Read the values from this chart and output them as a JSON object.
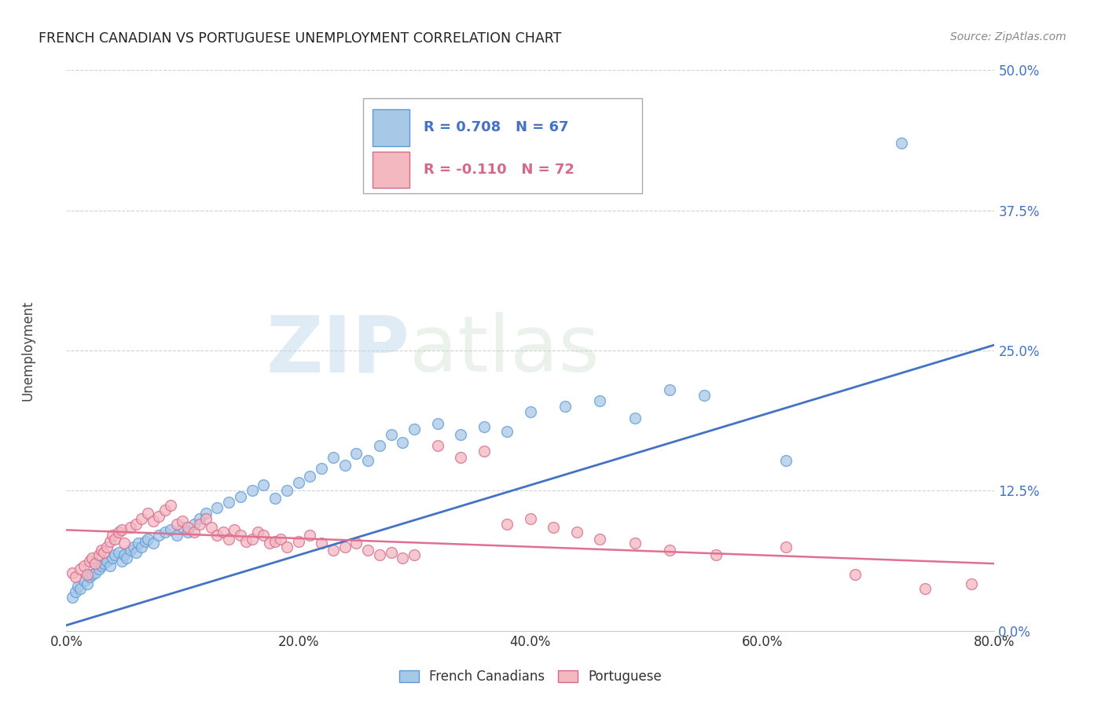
{
  "title": "FRENCH CANADIAN VS PORTUGUESE UNEMPLOYMENT CORRELATION CHART",
  "source": "Source: ZipAtlas.com",
  "ylabel": "Unemployment",
  "xlim": [
    0.0,
    0.8
  ],
  "ylim": [
    0.0,
    0.5
  ],
  "yticks": [
    0.0,
    0.125,
    0.25,
    0.375,
    0.5
  ],
  "xticks": [
    0.0,
    0.2,
    0.4,
    0.6,
    0.8
  ],
  "blue_color": "#a8c8e8",
  "blue_edge_color": "#5b9bd5",
  "pink_color": "#f4b8c1",
  "pink_edge_color": "#d4698a",
  "blue_line_color": "#4472c4",
  "pink_line_color": "#e07090",
  "legend_blue_R": "R = 0.708",
  "legend_blue_N": "N = 67",
  "legend_pink_R": "R = -0.110",
  "legend_pink_N": "N = 72",
  "blue_trend_x": [
    0.0,
    0.8
  ],
  "blue_trend_y": [
    0.005,
    0.255
  ],
  "pink_trend_x": [
    0.0,
    0.8
  ],
  "pink_trend_y": [
    0.09,
    0.06
  ],
  "watermark_zip": "ZIP",
  "watermark_atlas": "atlas",
  "ytick_color": "#4472c4",
  "xtick_color": "#333333",
  "blue_points_x": [
    0.005,
    0.008,
    0.01,
    0.012,
    0.015,
    0.018,
    0.02,
    0.022,
    0.025,
    0.028,
    0.03,
    0.032,
    0.035,
    0.038,
    0.04,
    0.042,
    0.045,
    0.048,
    0.05,
    0.052,
    0.055,
    0.058,
    0.06,
    0.062,
    0.065,
    0.068,
    0.07,
    0.075,
    0.08,
    0.085,
    0.09,
    0.095,
    0.1,
    0.105,
    0.11,
    0.115,
    0.12,
    0.13,
    0.14,
    0.15,
    0.16,
    0.17,
    0.18,
    0.19,
    0.2,
    0.21,
    0.22,
    0.23,
    0.24,
    0.25,
    0.26,
    0.27,
    0.28,
    0.29,
    0.3,
    0.32,
    0.34,
    0.36,
    0.38,
    0.4,
    0.43,
    0.46,
    0.49,
    0.52,
    0.55,
    0.62,
    0.72
  ],
  "blue_points_y": [
    0.03,
    0.035,
    0.04,
    0.038,
    0.045,
    0.042,
    0.048,
    0.05,
    0.052,
    0.055,
    0.058,
    0.06,
    0.062,
    0.058,
    0.065,
    0.068,
    0.07,
    0.062,
    0.068,
    0.065,
    0.072,
    0.075,
    0.07,
    0.078,
    0.075,
    0.08,
    0.082,
    0.078,
    0.085,
    0.088,
    0.09,
    0.085,
    0.092,
    0.088,
    0.095,
    0.1,
    0.105,
    0.11,
    0.115,
    0.12,
    0.125,
    0.13,
    0.118,
    0.125,
    0.132,
    0.138,
    0.145,
    0.155,
    0.148,
    0.158,
    0.152,
    0.165,
    0.175,
    0.168,
    0.18,
    0.185,
    0.175,
    0.182,
    0.178,
    0.195,
    0.2,
    0.205,
    0.19,
    0.215,
    0.21,
    0.152,
    0.435
  ],
  "pink_points_x": [
    0.005,
    0.008,
    0.012,
    0.015,
    0.018,
    0.02,
    0.022,
    0.025,
    0.028,
    0.03,
    0.032,
    0.035,
    0.038,
    0.04,
    0.042,
    0.045,
    0.048,
    0.05,
    0.055,
    0.06,
    0.065,
    0.07,
    0.075,
    0.08,
    0.085,
    0.09,
    0.095,
    0.1,
    0.105,
    0.11,
    0.115,
    0.12,
    0.125,
    0.13,
    0.135,
    0.14,
    0.145,
    0.15,
    0.155,
    0.16,
    0.165,
    0.17,
    0.175,
    0.18,
    0.185,
    0.19,
    0.2,
    0.21,
    0.22,
    0.23,
    0.24,
    0.25,
    0.26,
    0.27,
    0.28,
    0.29,
    0.3,
    0.32,
    0.34,
    0.36,
    0.38,
    0.4,
    0.42,
    0.44,
    0.46,
    0.49,
    0.52,
    0.56,
    0.62,
    0.68,
    0.74,
    0.78
  ],
  "pink_points_y": [
    0.052,
    0.048,
    0.055,
    0.058,
    0.05,
    0.062,
    0.065,
    0.06,
    0.068,
    0.072,
    0.07,
    0.075,
    0.08,
    0.085,
    0.082,
    0.088,
    0.09,
    0.078,
    0.092,
    0.095,
    0.1,
    0.105,
    0.098,
    0.102,
    0.108,
    0.112,
    0.095,
    0.098,
    0.092,
    0.088,
    0.095,
    0.1,
    0.092,
    0.085,
    0.088,
    0.082,
    0.09,
    0.085,
    0.08,
    0.082,
    0.088,
    0.085,
    0.078,
    0.08,
    0.082,
    0.075,
    0.08,
    0.085,
    0.078,
    0.072,
    0.075,
    0.078,
    0.072,
    0.068,
    0.07,
    0.065,
    0.068,
    0.165,
    0.155,
    0.16,
    0.095,
    0.1,
    0.092,
    0.088,
    0.082,
    0.078,
    0.072,
    0.068,
    0.075,
    0.05,
    0.038,
    0.042
  ]
}
